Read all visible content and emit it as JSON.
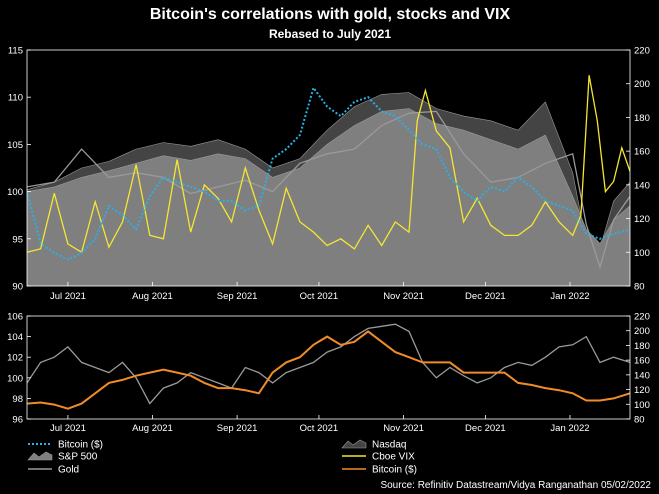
{
  "chart_data": [
    {
      "type": "line",
      "panel": "top",
      "title": "Bitcoin's correlations with gold, stocks and VIX",
      "subtitle": "Rebased to July 2021",
      "x_labels": [
        "Jul 2021",
        "Aug 2021",
        "Sep 2021",
        "Oct 2021",
        "Nov 2021",
        "Dec 2021",
        "Jan 2022"
      ],
      "x_label_days": [
        15,
        46,
        77,
        107,
        138,
        168,
        199
      ],
      "x_range_days": [
        0,
        221
      ],
      "ylim_left": [
        90,
        115
      ],
      "yticks_left": [
        90,
        95,
        100,
        105,
        110,
        115
      ],
      "ylim_right": [
        80,
        220
      ],
      "yticks_right": [
        80,
        100,
        120,
        140,
        160,
        180,
        200,
        220
      ],
      "grid": false,
      "series": [
        {
          "name": "Nasdaq",
          "axis": "left",
          "style": "area",
          "color": "#444444",
          "x": [
            0,
            10,
            20,
            30,
            40,
            50,
            60,
            70,
            80,
            90,
            100,
            110,
            120,
            130,
            140,
            150,
            160,
            170,
            180,
            190,
            200,
            205,
            210,
            215,
            221
          ],
          "values": [
            100.2,
            101,
            102.5,
            103.2,
            104.5,
            105.2,
            104.8,
            105.5,
            104.5,
            102.5,
            103.5,
            106.5,
            109,
            110.3,
            110.5,
            108.8,
            108,
            107.5,
            106.5,
            109.5,
            102,
            94.5,
            94,
            99,
            101
          ]
        },
        {
          "name": "S&P 500",
          "axis": "left",
          "style": "area",
          "color": "#7f7f7f",
          "x": [
            0,
            10,
            20,
            30,
            40,
            50,
            60,
            70,
            80,
            90,
            100,
            110,
            120,
            130,
            140,
            150,
            160,
            170,
            180,
            190,
            200,
            205,
            210,
            215,
            221
          ],
          "values": [
            100,
            100.5,
            101.5,
            102.2,
            103,
            103.8,
            103.3,
            104,
            103.5,
            101.5,
            102.5,
            105,
            107,
            108.5,
            108.8,
            107.2,
            106.5,
            105.5,
            104.5,
            106,
            99.5,
            96,
            94.5,
            97,
            98.5
          ]
        },
        {
          "name": "Gold",
          "axis": "left",
          "style": "line",
          "color": "#9a9a9a",
          "x": [
            0,
            10,
            20,
            30,
            40,
            50,
            60,
            70,
            80,
            90,
            100,
            110,
            120,
            130,
            140,
            150,
            160,
            170,
            180,
            190,
            200,
            205,
            210,
            215,
            221
          ],
          "values": [
            100.5,
            101,
            104.5,
            101.5,
            102,
            101.5,
            99.8,
            100.5,
            101.2,
            100,
            103,
            104,
            104.5,
            107,
            108.3,
            108.5,
            104,
            101,
            101.5,
            103,
            104,
            96.5,
            92,
            97,
            99.5
          ]
        },
        {
          "name": "Cboe VIX",
          "axis": "right",
          "style": "line",
          "color": "#f5e632",
          "x": [
            0,
            5,
            10,
            15,
            20,
            25,
            30,
            35,
            40,
            45,
            50,
            55,
            60,
            65,
            70,
            75,
            80,
            85,
            90,
            95,
            100,
            105,
            110,
            115,
            120,
            125,
            130,
            135,
            140,
            143,
            146,
            150,
            155,
            160,
            165,
            170,
            175,
            180,
            185,
            190,
            195,
            200,
            203,
            206,
            209,
            212,
            215,
            218,
            221
          ],
          "values": [
            100,
            102,
            135,
            105,
            100,
            130,
            103,
            118,
            152,
            110,
            108,
            155,
            112,
            140,
            132,
            118,
            150,
            125,
            105,
            138,
            118,
            112,
            104,
            108,
            102,
            116,
            104,
            118,
            112,
            178,
            196,
            172,
            162,
            118,
            132,
            116,
            110,
            110,
            116,
            130,
            118,
            110,
            122,
            205,
            178,
            136,
            142,
            162,
            148
          ]
        },
        {
          "name": "Bitcoin ($)",
          "axis": "left",
          "style": "dotted",
          "color": "#2ab0e6",
          "x": [
            0,
            5,
            10,
            15,
            20,
            25,
            30,
            35,
            40,
            45,
            50,
            55,
            60,
            65,
            70,
            75,
            80,
            85,
            90,
            95,
            100,
            105,
            110,
            115,
            120,
            125,
            130,
            135,
            140,
            145,
            150,
            155,
            160,
            165,
            170,
            175,
            180,
            185,
            190,
            195,
            200,
            205,
            210,
            215,
            221
          ],
          "values": [
            100,
            94.5,
            93.5,
            92.8,
            93.5,
            95,
            98.5,
            97.5,
            96,
            99.5,
            101.5,
            101,
            100.5,
            100,
            99,
            99,
            98,
            98.5,
            103.5,
            104.5,
            106,
            111,
            109,
            108,
            109.5,
            110,
            108.5,
            108,
            106.5,
            105,
            104.5,
            101.5,
            100,
            99,
            100.5,
            100,
            101.5,
            100.5,
            99,
            98.5,
            98,
            95.5,
            95,
            95.5,
            96
          ]
        }
      ]
    },
    {
      "type": "line",
      "panel": "bottom",
      "x_labels": [
        "Jul 2021",
        "Aug 2021",
        "Sep 2021",
        "Oct 2021",
        "Nov 2021",
        "Dec 2021",
        "Jan 2022"
      ],
      "x_label_days": [
        15,
        46,
        77,
        107,
        138,
        168,
        199
      ],
      "x_range_days": [
        0,
        221
      ],
      "ylim_left": [
        96,
        106
      ],
      "yticks_left": [
        96,
        98,
        100,
        102,
        104,
        106
      ],
      "ylim_right": [
        80,
        220
      ],
      "yticks_right": [
        80,
        100,
        120,
        140,
        160,
        180,
        200,
        220
      ],
      "grid": false,
      "series": [
        {
          "name": "Gold",
          "axis": "left",
          "style": "line",
          "color": "#9a9a9a",
          "x": [
            0,
            5,
            10,
            15,
            20,
            25,
            30,
            35,
            40,
            45,
            50,
            55,
            60,
            65,
            70,
            75,
            80,
            85,
            90,
            95,
            100,
            105,
            110,
            115,
            120,
            125,
            130,
            135,
            140,
            145,
            150,
            155,
            160,
            165,
            170,
            175,
            180,
            185,
            190,
            195,
            200,
            205,
            210,
            215,
            221
          ],
          "values": [
            99.5,
            101.5,
            102,
            103,
            101.5,
            101,
            100.5,
            101.5,
            100,
            97.5,
            99,
            99.5,
            100.5,
            100,
            99.5,
            99,
            101,
            100.5,
            99.5,
            100.5,
            101,
            101.5,
            102.5,
            103,
            104,
            104.8,
            105,
            105.2,
            104.5,
            101.5,
            100,
            101,
            100.2,
            99.5,
            100,
            101,
            101.5,
            101.2,
            102,
            103,
            103.2,
            104,
            101.5,
            102,
            101.5
          ]
        },
        {
          "name": "Bitcoin ($)",
          "axis": "left",
          "style": "line",
          "color": "#f28c28",
          "x": [
            0,
            5,
            10,
            15,
            20,
            25,
            30,
            35,
            40,
            45,
            50,
            55,
            60,
            65,
            70,
            75,
            80,
            85,
            90,
            95,
            100,
            105,
            110,
            115,
            120,
            125,
            130,
            135,
            140,
            145,
            150,
            155,
            160,
            165,
            170,
            175,
            180,
            185,
            190,
            195,
            200,
            205,
            210,
            215,
            221
          ],
          "values": [
            97.5,
            97.6,
            97.4,
            97,
            97.5,
            98.5,
            99.5,
            99.8,
            100.2,
            100.5,
            100.8,
            100.5,
            100.2,
            99.5,
            99,
            99,
            98.8,
            98.5,
            100.5,
            101.5,
            102,
            103.2,
            104,
            103.2,
            103.5,
            104.5,
            103.5,
            102.5,
            102,
            101.5,
            101.5,
            101.5,
            100.5,
            100.5,
            100.5,
            100.5,
            99.5,
            99.3,
            99,
            98.8,
            98.5,
            97.8,
            97.8,
            98,
            98.5
          ]
        }
      ]
    }
  ],
  "legend": {
    "items": [
      {
        "label": "Bitcoin ($)",
        "swatch": "dotted",
        "color": "#2ab0e6"
      },
      {
        "label": "S&P 500",
        "swatch": "area",
        "color": "#7f7f7f"
      },
      {
        "label": "Gold",
        "swatch": "line",
        "color": "#9a9a9a"
      },
      {
        "label": "Nasdaq",
        "swatch": "area",
        "color": "#444444"
      },
      {
        "label": "Cboe VIX",
        "swatch": "line",
        "color": "#f5e632"
      },
      {
        "label": "Bitcoin ($)",
        "swatch": "line",
        "color": "#f28c28"
      }
    ]
  },
  "source": "Source: Refinitiv Datastream/Vidya Ranganathan 05/02/2022"
}
